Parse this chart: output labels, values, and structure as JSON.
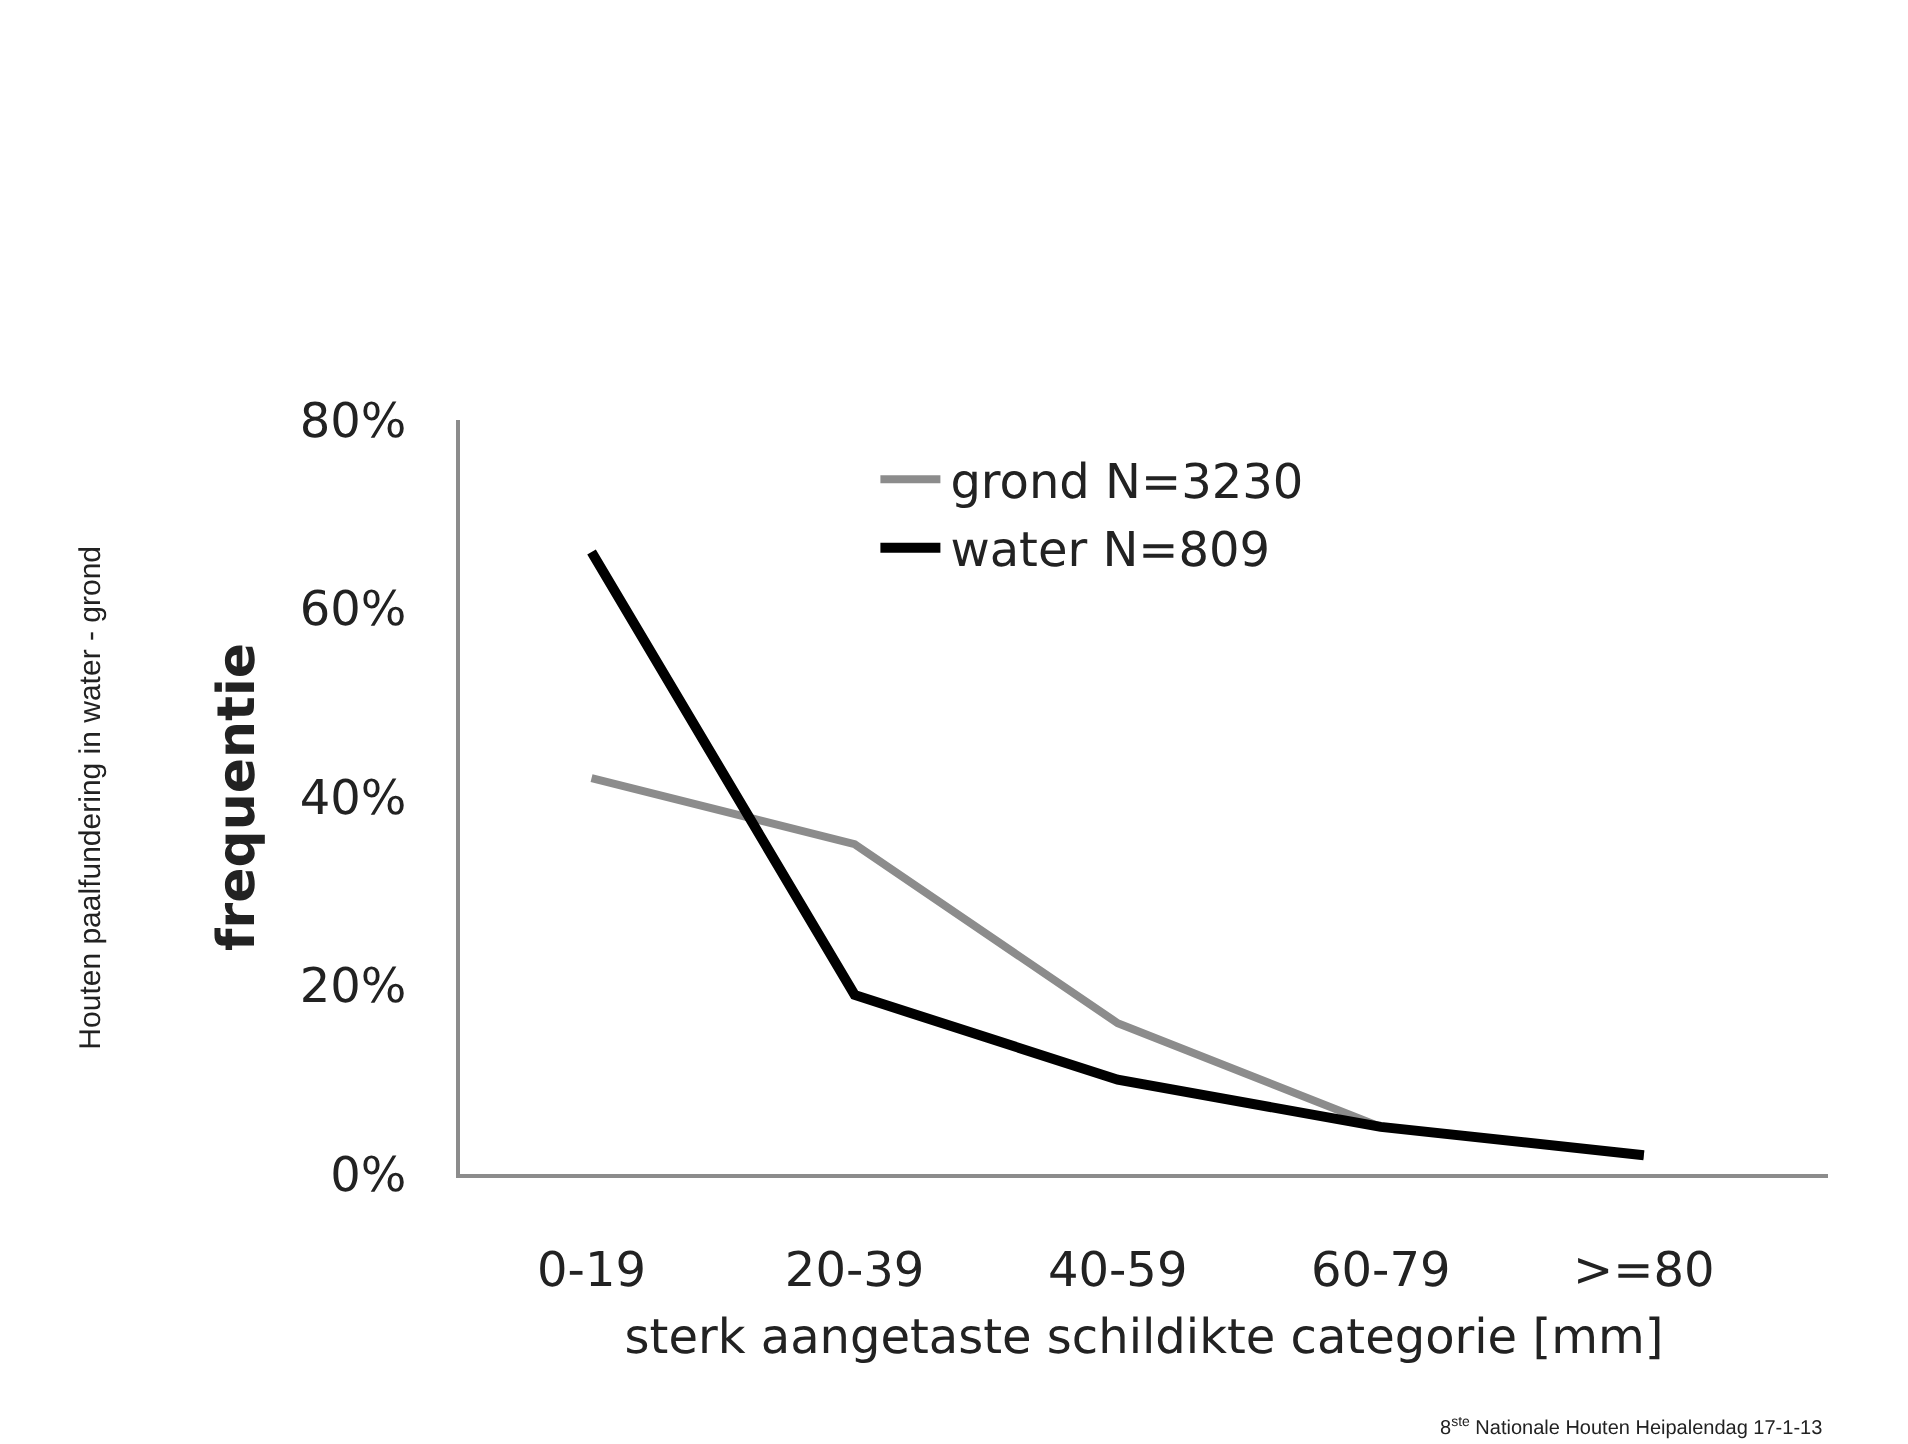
{
  "chart_data": {
    "type": "line",
    "categories": [
      "0-19",
      "20-39",
      "40-59",
      "60-79",
      ">=80"
    ],
    "series": [
      {
        "name": "grond N=3230",
        "color": "#8c8c8c",
        "values": [
          42,
          35,
          16,
          5,
          2
        ]
      },
      {
        "name": "water N=809",
        "color": "#000000",
        "values": [
          66,
          19,
          10,
          5,
          2
        ]
      }
    ],
    "xlabel": "sterk aangetaste schildikte categorie [mm]",
    "ylabel": "frequentie",
    "ylim": [
      0,
      80
    ],
    "yticks": [
      {
        "value": 0,
        "label": "0%"
      },
      {
        "value": 20,
        "label": "20%"
      },
      {
        "value": 40,
        "label": "40%"
      },
      {
        "value": 60,
        "label": "60%"
      },
      {
        "value": 80,
        "label": "80%"
      }
    ],
    "legend": "top",
    "marker": "none",
    "line_style": "solid",
    "annotations": [
      "Houten paalfundering in water - grond",
      "8$^{ste}$ Nationale Houten Heipalendag 17-1-13"
    ]
  }
}
